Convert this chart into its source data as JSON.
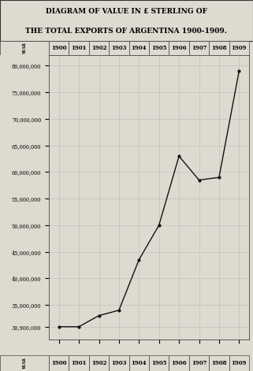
{
  "title_line1": "DIAGRAM OF VALUE IN £ STERLING OF",
  "title_line2": "THE TOTAL EXPORTS OF ARGENTINA 1900-1909.",
  "years": [
    1900,
    1901,
    1902,
    1903,
    1904,
    1905,
    1906,
    1907,
    1908,
    1909
  ],
  "values": [
    30900000,
    30900000,
    33000000,
    34000000,
    43500000,
    50000000,
    63000000,
    58500000,
    59000000,
    79000000
  ],
  "yticks": [
    30900000,
    35000000,
    40000000,
    45000000,
    50000000,
    55000000,
    60000000,
    65000000,
    70000000,
    75000000,
    80000000
  ],
  "ytick_labels": [
    "30,900,000",
    "35,000,000",
    "40,000,000",
    "45,000,000",
    "50,000,000",
    "55,000,000",
    "60,000,000",
    "65,000,000",
    "70,000,000",
    "75,000,000",
    "80,000,000"
  ],
  "ylim_min": 28500000,
  "ylim_max": 82000000,
  "line_color": "#111111",
  "bg_color": "#dedad0",
  "grid_color": "#bbbbbb",
  "pound_label": "£"
}
